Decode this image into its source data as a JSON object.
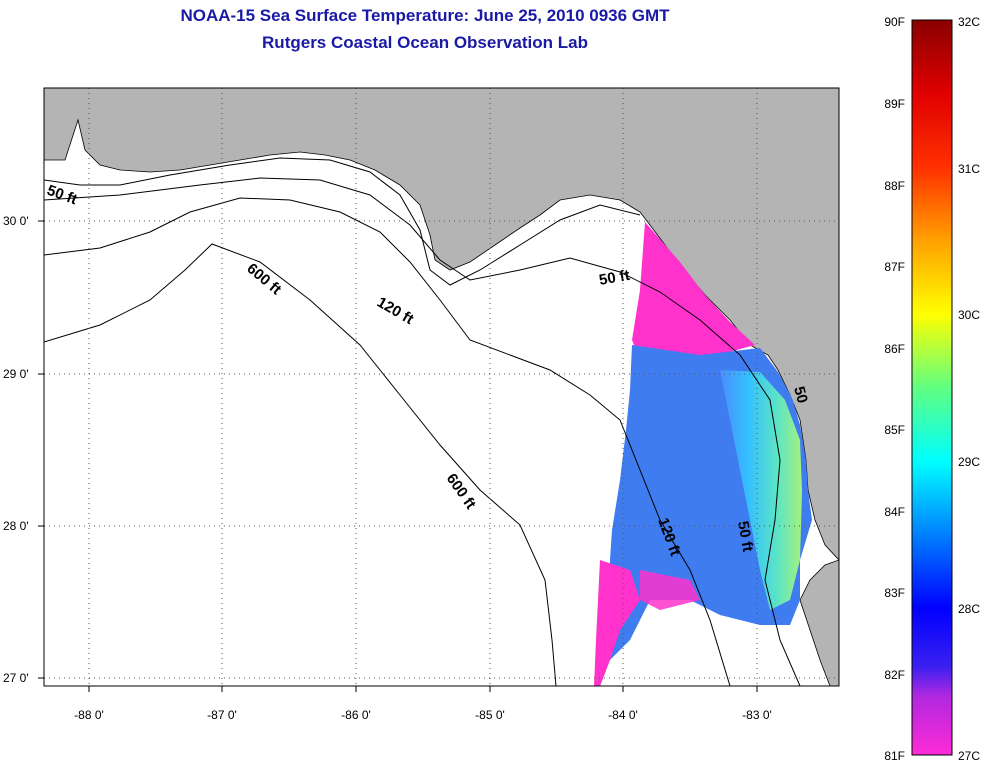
{
  "title": {
    "line1": "NOAA-15 Sea Surface Temperature:  June 25, 2010 0936 GMT",
    "line2": "Rutgers Coastal Ocean Observation Lab"
  },
  "map": {
    "lon_ticks": [
      "-88 0'",
      "-87 0'",
      "-86 0'",
      "-85 0'",
      "-84 0'",
      "-83 0'"
    ],
    "lat_ticks": [
      "30 0'",
      "29 0'",
      "28 0'",
      "27 0'"
    ],
    "contour_labels": [
      "50 ft",
      "600 ft",
      "120 ft",
      "50 ft",
      "600 ft",
      "120 ft",
      "50 ft",
      "50"
    ],
    "colors": {
      "land": "#b4b4b4",
      "water": "#ffffff"
    }
  },
  "colorbar": {
    "fahrenheit": [
      "90F",
      "89F",
      "88F",
      "87F",
      "86F",
      "85F",
      "84F",
      "83F",
      "82F",
      "81F"
    ],
    "celsius": [
      "32C",
      "31C",
      "30C",
      "29C",
      "28C",
      "27C"
    ]
  }
}
